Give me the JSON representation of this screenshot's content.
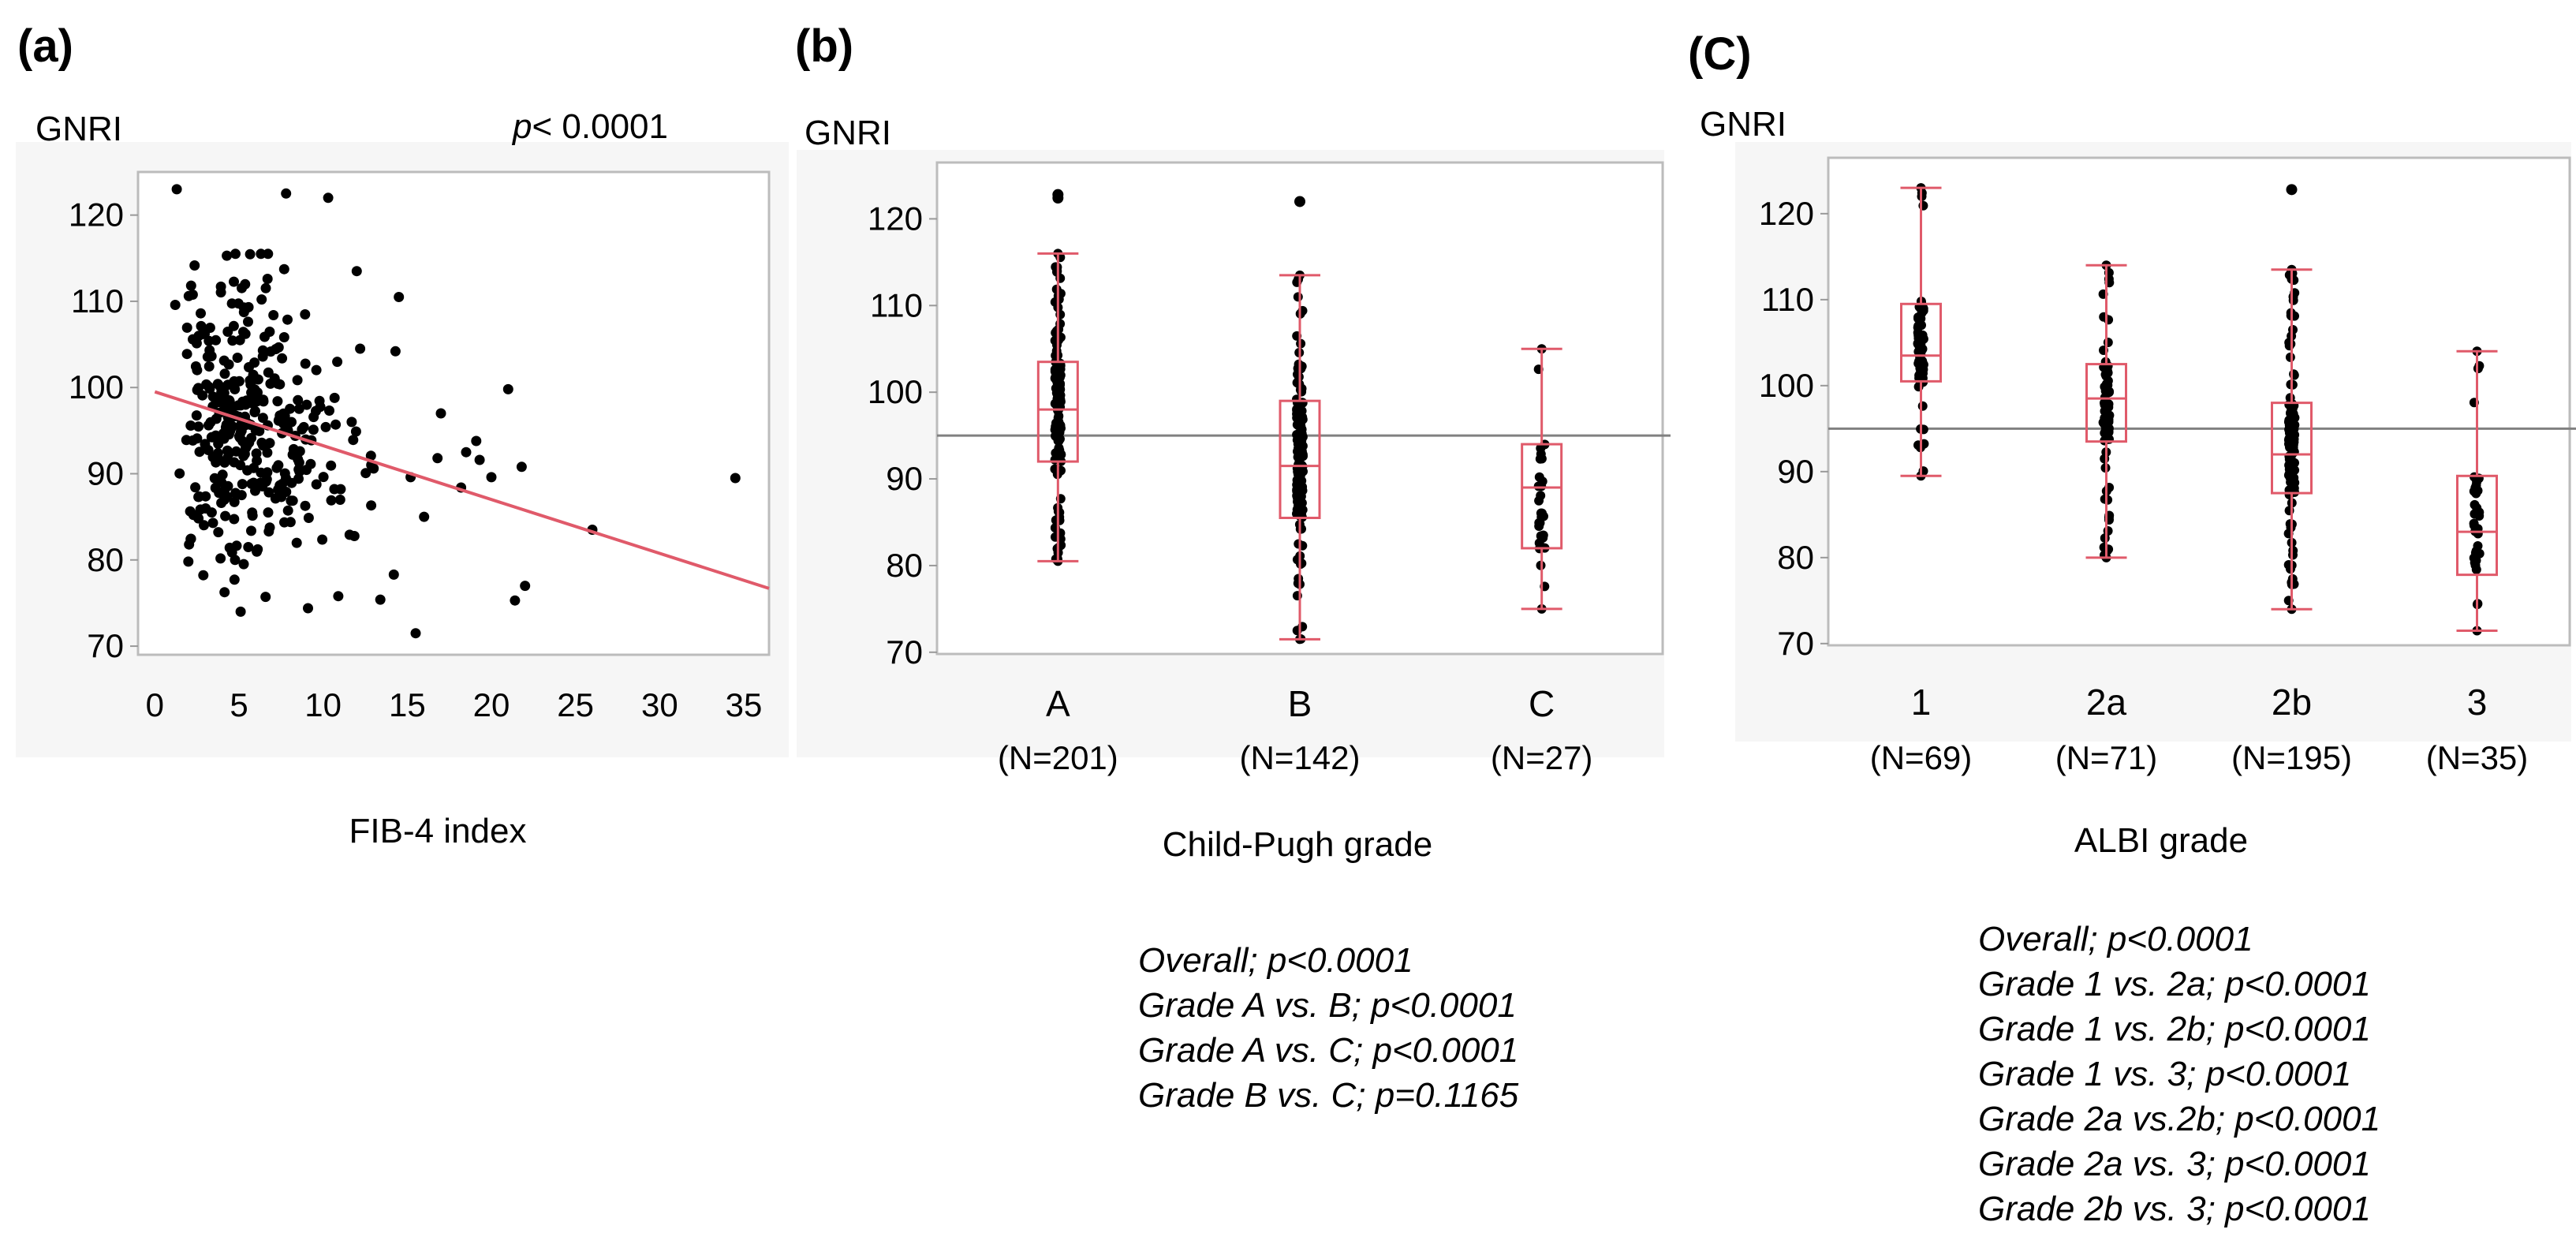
{
  "colors": {
    "regression": "#e05a6a",
    "box": "#e05a6a",
    "points": "#000000",
    "reference": "#808080",
    "frame": "#bcbcbc"
  },
  "chart_data": [
    {
      "panel": "(a)",
      "type": "scatter",
      "ylabel": "GNRI",
      "xlabel": "FIB-4 index",
      "p_value_prefix": "p",
      "p_value_rest": "< 0.0001",
      "xlim": [
        -1,
        36.5
      ],
      "ylim": [
        69,
        125
      ],
      "xticks": [
        0,
        5,
        10,
        15,
        20,
        25,
        30,
        35
      ],
      "yticks": [
        70,
        80,
        90,
        100,
        110,
        120
      ],
      "regression": {
        "x0": 0,
        "y0": 99.5,
        "x1": 36.5,
        "y1": 76.7
      },
      "points_description": "370 patients; dense cloud at FIB-4 1-12, GNRI 75-115",
      "outliers": [
        [
          1.3,
          123
        ],
        [
          7.8,
          122.5
        ],
        [
          10.3,
          122
        ],
        [
          15.5,
          71.5
        ],
        [
          5.1,
          74
        ],
        [
          9.1,
          74.4
        ],
        [
          21,
          99.8
        ],
        [
          21.8,
          90.8
        ],
        [
          21.4,
          75.3
        ],
        [
          22,
          77
        ],
        [
          26,
          83.5
        ],
        [
          34.5,
          89.5
        ],
        [
          19.3,
          91.6
        ],
        [
          18.5,
          92.5
        ],
        [
          17,
          97
        ],
        [
          14.5,
          110.5
        ],
        [
          12,
          113.5
        ],
        [
          14.3,
          104.2
        ],
        [
          16,
          85
        ],
        [
          13.4,
          75.4
        ],
        [
          16.8,
          91.8
        ],
        [
          18.2,
          88.4
        ],
        [
          15.2,
          89.6
        ],
        [
          11.7,
          96
        ],
        [
          12.2,
          104.5
        ],
        [
          13,
          90.6
        ],
        [
          10.9,
          75.8
        ],
        [
          14.2,
          78.3
        ],
        [
          20,
          89.6
        ],
        [
          19.1,
          93.8
        ]
      ]
    },
    {
      "panel": "(b)",
      "type": "box",
      "ylabel": "GNRI",
      "xlabel": "Child-Pugh  grade",
      "ylim": [
        69.8,
        126.5
      ],
      "yticks": [
        70,
        80,
        90,
        100,
        110,
        120
      ],
      "reference_line": 95,
      "groups": [
        {
          "label": "A",
          "n": "(N=201)",
          "min": 80.5,
          "q1": 92,
          "median": 98,
          "q3": 103.5,
          "max": 116,
          "outliers": [
            122.8,
            122.4
          ],
          "count": 201
        },
        {
          "label": "B",
          "n": "(N=142)",
          "min": 71.5,
          "q1": 85.5,
          "median": 91.5,
          "q3": 99,
          "max": 113.5,
          "outliers": [
            122
          ],
          "count": 142
        },
        {
          "label": "C",
          "n": "(N=27)",
          "min": 75,
          "q1": 82,
          "median": 89,
          "q3": 94,
          "max": 105,
          "outliers": [],
          "count": 27
        }
      ],
      "stats": [
        "Overall; p<0.0001",
        "Grade A vs. B; p<0.0001",
        "Grade A vs. C; p<0.0001",
        "Grade B vs. C; p=0.1165"
      ]
    },
    {
      "panel": "(C)",
      "type": "box",
      "ylabel": "GNRI",
      "xlabel": "ALBI grade",
      "ylim": [
        69.8,
        126.5
      ],
      "yticks": [
        70,
        80,
        90,
        100,
        110,
        120
      ],
      "reference_line": 95,
      "groups": [
        {
          "label": "1",
          "n": "(N=69)",
          "min": 89.5,
          "q1": 100.5,
          "median": 103.5,
          "q3": 109.5,
          "max": 123,
          "outliers": [],
          "count": 69
        },
        {
          "label": "2a",
          "n": "(N=71)",
          "min": 80,
          "q1": 93.5,
          "median": 98.5,
          "q3": 102.5,
          "max": 114,
          "outliers": [],
          "count": 71
        },
        {
          "label": "2b",
          "n": "(N=195)",
          "min": 74,
          "q1": 87.5,
          "median": 92,
          "q3": 98,
          "max": 113.5,
          "outliers": [
            122.8
          ],
          "count": 195
        },
        {
          "label": "3",
          "n": "(N=35)",
          "min": 71.5,
          "q1": 78,
          "median": 83,
          "q3": 89.5,
          "max": 104,
          "outliers": [],
          "count": 35
        }
      ],
      "stats": [
        "Overall; p<0.0001",
        "Grade 1 vs. 2a; p<0.0001",
        "Grade 1 vs. 2b; p<0.0001",
        "Grade 1 vs. 3; p<0.0001",
        "Grade 2a vs.2b; p<0.0001",
        "Grade 2a vs. 3; p<0.0001",
        "Grade 2b vs. 3; p<0.0001"
      ]
    }
  ]
}
